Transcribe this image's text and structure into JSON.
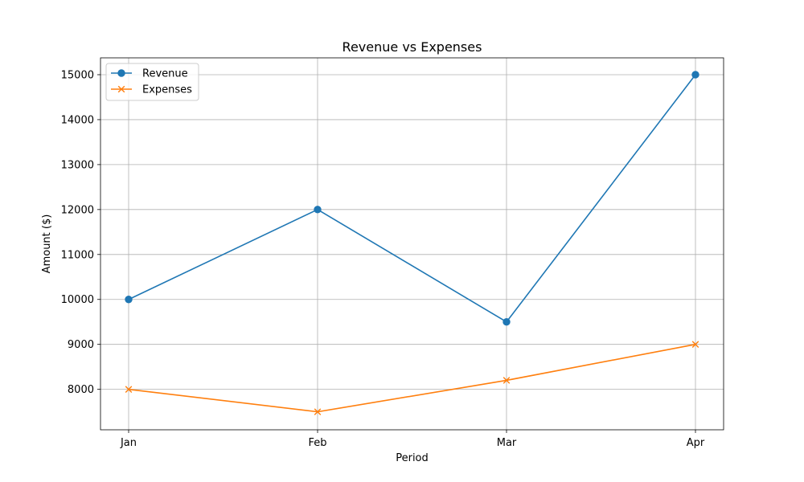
{
  "chart_data": {
    "type": "line",
    "title": "Revenue vs Expenses",
    "xlabel": "Period",
    "ylabel": "Amount ($)",
    "categories": [
      "Jan",
      "Feb",
      "Mar",
      "Apr"
    ],
    "ylim": [
      7100,
      15375
    ],
    "yticks": [
      8000,
      9000,
      10000,
      11000,
      12000,
      13000,
      14000,
      15000
    ],
    "grid": true,
    "legend_position": "top-left",
    "series": [
      {
        "name": "Revenue",
        "values": [
          10000,
          12000,
          9500,
          15000
        ],
        "color": "#1f77b4",
        "marker": "circle"
      },
      {
        "name": "Expenses",
        "values": [
          8000,
          7500,
          8200,
          9000
        ],
        "color": "#ff7f0e",
        "marker": "x"
      }
    ]
  }
}
